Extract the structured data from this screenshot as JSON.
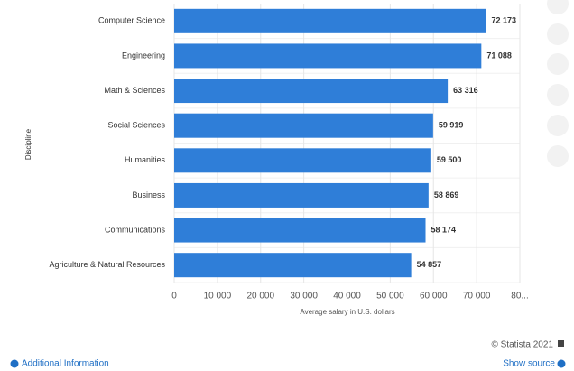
{
  "chart_data": {
    "type": "barh",
    "categories": [
      "Computer Science",
      "Engineering",
      "Math & Sciences",
      "Social Sciences",
      "Humanities",
      "Business",
      "Communications",
      "Agriculture & Natural Resources"
    ],
    "values": [
      72173,
      71088,
      63316,
      59919,
      59500,
      58869,
      58174,
      54857
    ],
    "value_labels": [
      "72 173",
      "71 088",
      "63 316",
      "59 919",
      "59 500",
      "58 869",
      "58 174",
      "54 857"
    ],
    "color": "#2f7ed8",
    "xlabel": "Average salary in U.S. dollars",
    "ylabel": "Discipline",
    "xlim": [
      0,
      80000
    ],
    "xticks": [
      0,
      {
        "value": 10000,
        "label": "10 000"
      },
      {
        "value": 20000,
        "label": "20 000"
      },
      {
        "value": 30000,
        "label": "30 000"
      },
      {
        "value": 40000,
        "label": "40 000"
      },
      {
        "value": 50000,
        "label": "50 000"
      },
      {
        "value": 60000,
        "label": "60 000"
      },
      {
        "value": 70000,
        "label": "70 000"
      },
      {
        "value": 80000,
        "label": "80..."
      }
    ],
    "grid": true
  },
  "footer": {
    "copyright": "© Statista 2021",
    "additional_info": "Additional Information",
    "show_source": "Show source"
  }
}
